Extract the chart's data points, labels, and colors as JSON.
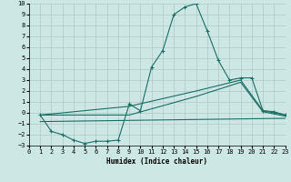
{
  "xlabel": "Humidex (Indice chaleur)",
  "background_color": "#cde8e4",
  "grid_color": "#b0c8c4",
  "line_color": "#1a6e64",
  "xlim": [
    0,
    23
  ],
  "ylim": [
    -3,
    10
  ],
  "xticks": [
    0,
    1,
    2,
    3,
    4,
    5,
    6,
    7,
    8,
    9,
    10,
    11,
    12,
    13,
    14,
    15,
    16,
    17,
    18,
    19,
    20,
    21,
    22,
    23
  ],
  "yticks": [
    -3,
    -2,
    -1,
    0,
    1,
    2,
    3,
    4,
    5,
    6,
    7,
    8,
    9,
    10
  ],
  "series1_x": [
    1,
    2,
    3,
    4,
    5,
    6,
    7,
    8,
    9,
    10,
    11,
    12,
    13,
    14,
    15,
    16,
    17,
    18,
    19,
    20,
    21,
    22,
    23
  ],
  "series1_y": [
    -0.2,
    -1.7,
    -2.0,
    -2.5,
    -2.8,
    -2.6,
    -2.6,
    -2.5,
    0.8,
    0.2,
    4.2,
    5.7,
    9.0,
    9.7,
    10.0,
    7.5,
    4.8,
    3.0,
    3.2,
    3.2,
    0.2,
    0.1,
    -0.2
  ],
  "series2_x": [
    1,
    9,
    15,
    19,
    21,
    23
  ],
  "series2_y": [
    -0.2,
    0.6,
    2.0,
    3.0,
    0.2,
    -0.2
  ],
  "series3_x": [
    1,
    9,
    15,
    19,
    21,
    23
  ],
  "series3_y": [
    -0.2,
    -0.2,
    1.5,
    2.8,
    0.1,
    -0.3
  ],
  "series4_x": [
    1,
    23
  ],
  "series4_y": [
    -0.8,
    -0.5
  ]
}
